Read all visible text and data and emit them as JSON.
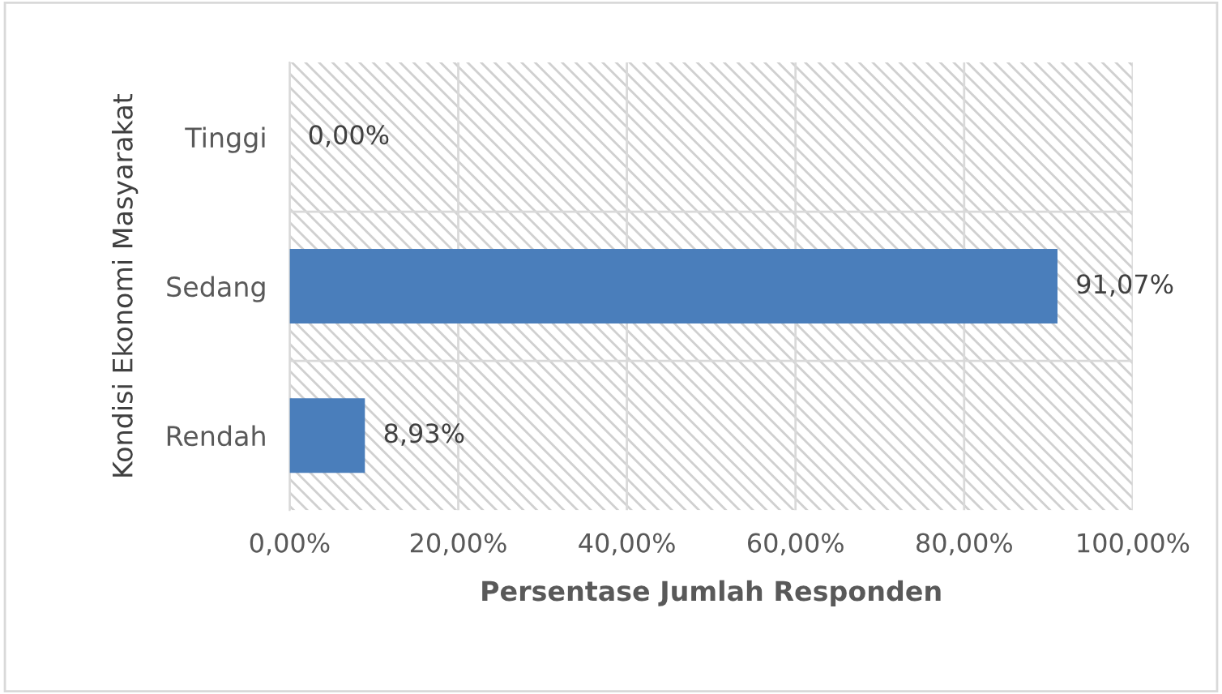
{
  "chart_data": {
    "type": "bar",
    "orientation": "horizontal",
    "categories": [
      "Tinggi",
      "Sedang",
      "Rendah"
    ],
    "values": [
      0,
      91.07,
      8.93
    ],
    "value_labels": [
      "0,00%",
      "91,07%",
      "8,93%"
    ],
    "color": "#4a7ebb",
    "xlabel": "Persentase Jumlah Responden",
    "ylabel": "Kondisi Ekonomi Masyarakat",
    "xlim": [
      0,
      100
    ],
    "xticks": [
      {
        "value": 0,
        "label": "0,00%"
      },
      {
        "value": 20,
        "label": "20,00%"
      },
      {
        "value": 40,
        "label": "40,00%"
      },
      {
        "value": 60,
        "label": "60,00%"
      },
      {
        "value": 80,
        "label": "80,00%"
      },
      {
        "value": 100,
        "label": "100,00%"
      }
    ],
    "grid": true
  }
}
